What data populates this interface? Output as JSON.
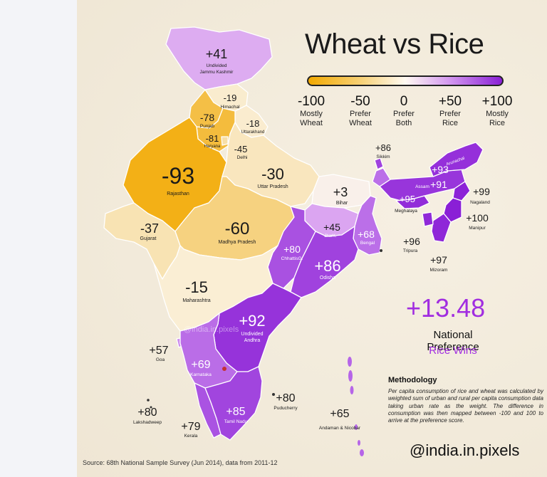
{
  "title": "Wheat vs Rice",
  "scale": [
    {
      "value": "-100",
      "label1": "Mostly",
      "label2": "Wheat"
    },
    {
      "value": "-50",
      "label1": "Prefer",
      "label2": "Wheat"
    },
    {
      "value": "0",
      "label1": "Prefer",
      "label2": "Both"
    },
    {
      "value": "+50",
      "label1": "Prefer",
      "label2": "Rice"
    },
    {
      "value": "+100",
      "label1": "Mostly",
      "label2": "Rice"
    }
  ],
  "national": {
    "value": "+13.48",
    "label": "National Preference",
    "verdict": "Rice Wins"
  },
  "methodology": {
    "title": "Methodology",
    "text": "Per capita consumption of rice and wheat was calculated by weighted sum of urban and rural per capita consumption data taking urban rate as the weight. The difference in consumption was then mapped between -100 and 100 to arrive at the preference score."
  },
  "handle": "@india.in.pixels",
  "source": "Source: 68th National Sample Survey (Jun 2014), data from 2011-12",
  "watermark": "@india.in.pixels",
  "colors": {
    "wheat_strong": "#f2a900",
    "wheat_light": "#f7dca0",
    "neutral": "#fbf5ea",
    "rice_light": "#d79cf2",
    "rice_strong": "#8a1fd6",
    "accent": "#a12de0"
  },
  "states": [
    {
      "name": "Undivided\nJammu Kashmir",
      "score": "+41"
    },
    {
      "name": "Himachal",
      "score": "-19"
    },
    {
      "name": "Punjab",
      "score": "-78"
    },
    {
      "name": "Uttarakhand",
      "score": "-18"
    },
    {
      "name": "Haryana",
      "score": "-81"
    },
    {
      "name": "Delhi",
      "score": "-45"
    },
    {
      "name": "Rajasthan",
      "score": "-93"
    },
    {
      "name": "Uttar Pradesh",
      "score": "-30"
    },
    {
      "name": "Bihar",
      "score": "+3"
    },
    {
      "name": "Sikkim",
      "score": "+86"
    },
    {
      "name": "Arunachal",
      "score": "+93"
    },
    {
      "name": "Assam",
      "score": "+91"
    },
    {
      "name": "Meghalaya",
      "score": "+95"
    },
    {
      "name": "Nagaland",
      "score": "+99"
    },
    {
      "name": "Manipur",
      "score": "+100"
    },
    {
      "name": "Tripura",
      "score": "+96"
    },
    {
      "name": "Mizoram",
      "score": "+97"
    },
    {
      "name": "Gujarat",
      "score": "-37"
    },
    {
      "name": "Madhya Pradesh",
      "score": "-60"
    },
    {
      "name": "JharK.",
      "score": "+45"
    },
    {
      "name": "Bengal",
      "score": "+68"
    },
    {
      "name": "ChhattisG.",
      "score": "+80"
    },
    {
      "name": "Odisha",
      "score": "+86"
    },
    {
      "name": "Maharashtra",
      "score": "-15"
    },
    {
      "name": "Undivided\nAndhra",
      "score": "+92"
    },
    {
      "name": "Goa",
      "score": "+57"
    },
    {
      "name": "Karnataka",
      "score": "+69"
    },
    {
      "name": "Tamil Nadu",
      "score": "+85"
    },
    {
      "name": "Puducherry",
      "score": "+80"
    },
    {
      "name": "Kerala",
      "score": "+79"
    },
    {
      "name": "Lakshadweep",
      "score": "+80"
    },
    {
      "name": "Andaman & Nicobar",
      "score": "+65"
    }
  ]
}
